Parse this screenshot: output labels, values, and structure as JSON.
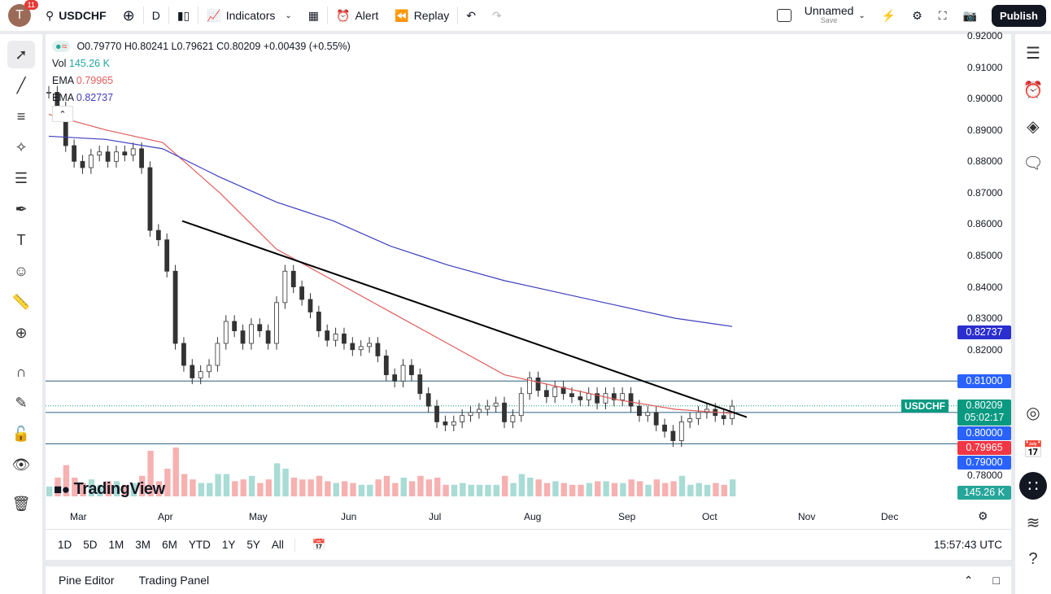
{
  "topbar": {
    "avatar_letter": "T",
    "notifications": "11",
    "symbol": "USDCHF",
    "interval": "D",
    "indicators": "Indicators",
    "alert": "Alert",
    "replay": "Replay",
    "layout_name": "Unnamed",
    "layout_save": "Save",
    "publish": "Publish"
  },
  "legend": {
    "ohlc": "O0.79770 H0.80241 L0.79621 C0.80209 +0.00439 (+0.55%)",
    "vol_label": "Vol",
    "vol_value": "145.26 K",
    "ema1_label": "EMA",
    "ema1_value": "0.79965",
    "ema2_label": "EMA",
    "ema2_value": "0.82737"
  },
  "price_axis": [
    "0.92000",
    "0.91000",
    "0.90000",
    "0.89000",
    "0.88000",
    "0.87000",
    "0.86000",
    "0.85000",
    "0.84000",
    "0.83000",
    "0.82000",
    "0.81000",
    "0.80000",
    "0.79000",
    "0.78000"
  ],
  "price_labels": {
    "ema2": "0.82737",
    "level1": "0.81000",
    "symbol_tag": "USDCHF",
    "current": "0.80209",
    "countdown": "05:02:17",
    "level2": "0.80000",
    "ema1": "0.79965",
    "level3": "0.79000",
    "volume": "145.26 K"
  },
  "time_axis": [
    "Mar",
    "Apr",
    "May",
    "Jun",
    "Jul",
    "Aug",
    "Sep",
    "Oct",
    "Nov",
    "Dec"
  ],
  "ranges": [
    "1D",
    "5D",
    "1M",
    "3M",
    "6M",
    "YTD",
    "1Y",
    "5Y",
    "All"
  ],
  "clock": "15:57:43 UTC",
  "bottom": {
    "pine": "Pine Editor",
    "trading": "Trading Panel"
  },
  "logo": "TradingView",
  "colors": {
    "up": "#26a69a",
    "down": "#ef5350",
    "ema_fast": "#e05c5c",
    "ema_slow": "#3f3fbf",
    "level": "#2962ff",
    "accent": "#131722"
  },
  "chart_data": {
    "type": "candlestick",
    "ylim": [
      0.78,
      0.92
    ],
    "closes": [
      0.902,
      0.897,
      0.885,
      0.88,
      0.878,
      0.882,
      0.883,
      0.88,
      0.883,
      0.882,
      0.884,
      0.878,
      0.858,
      0.855,
      0.845,
      0.822,
      0.815,
      0.811,
      0.813,
      0.815,
      0.822,
      0.829,
      0.826,
      0.822,
      0.828,
      0.826,
      0.822,
      0.835,
      0.845,
      0.84,
      0.836,
      0.832,
      0.826,
      0.823,
      0.825,
      0.822,
      0.82,
      0.821,
      0.822,
      0.818,
      0.812,
      0.81,
      0.815,
      0.812,
      0.806,
      0.802,
      0.797,
      0.796,
      0.797,
      0.799,
      0.8,
      0.801,
      0.802,
      0.803,
      0.797,
      0.799,
      0.806,
      0.811,
      0.807,
      0.805,
      0.808,
      0.806,
      0.805,
      0.804,
      0.806,
      0.803,
      0.806,
      0.804,
      0.806,
      0.802,
      0.799,
      0.8,
      0.796,
      0.794,
      0.791,
      0.797,
      0.798,
      0.8,
      0.801,
      0.799,
      0.798,
      0.802
    ],
    "ema_fast": [
      0.895,
      0.89,
      0.886,
      0.87,
      0.852,
      0.842,
      0.832,
      0.822,
      0.812,
      0.808,
      0.804,
      0.801,
      0.7997
    ],
    "ema_slow": [
      0.888,
      0.887,
      0.884,
      0.875,
      0.867,
      0.861,
      0.853,
      0.847,
      0.842,
      0.838,
      0.834,
      0.83,
      0.8274
    ],
    "horizontal_levels": [
      0.81,
      0.8,
      0.79
    ],
    "trendline": [
      0.861,
      0.7985
    ]
  }
}
